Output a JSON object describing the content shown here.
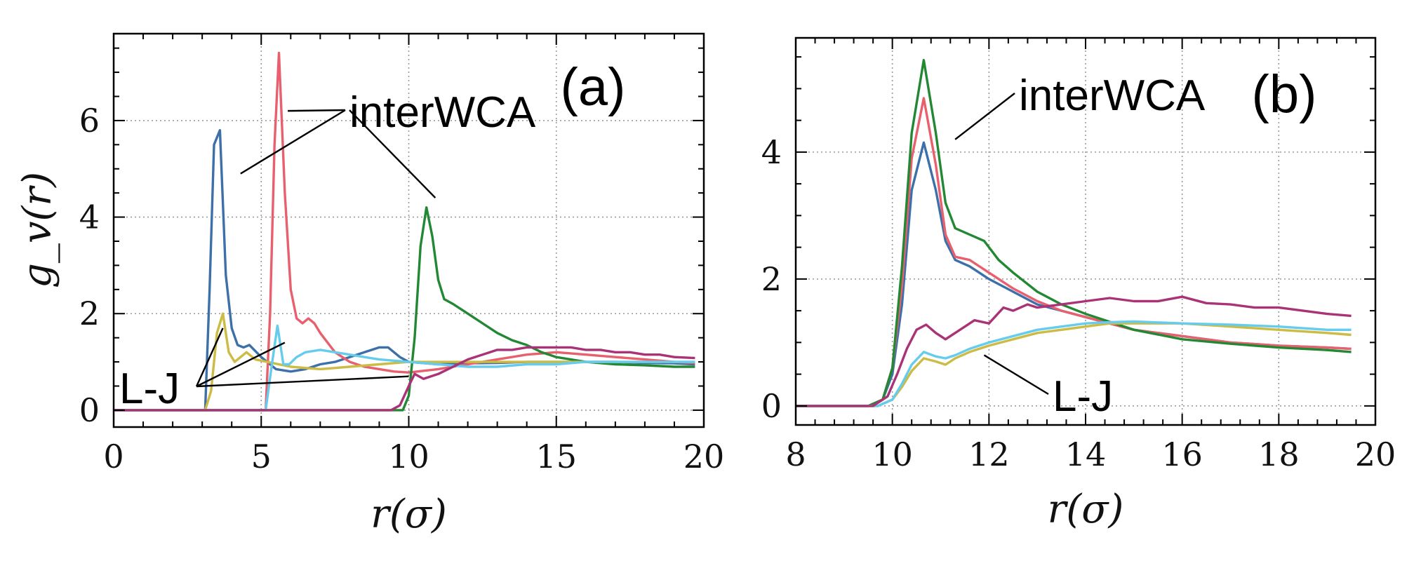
{
  "chart_data": [
    {
      "panel": "(a)",
      "type": "line",
      "title": "",
      "xlabel": "r(σ)",
      "ylabel": "g_v(r)",
      "xlim": [
        0,
        20
      ],
      "ylim": [
        -0.35,
        7.8
      ],
      "xticks": [
        0,
        5,
        10,
        15,
        20
      ],
      "xticklabels": [
        "0",
        "5",
        "10",
        "15",
        "20"
      ],
      "yticks": [
        0,
        2,
        4,
        6
      ],
      "yticklabels": [
        "0",
        "2",
        "4",
        "6"
      ],
      "grid": true,
      "annotations": [
        {
          "text": "interWCA",
          "anchor": [
            8.1,
            6.3
          ],
          "targets": [
            [
              5.9,
              6.2
            ],
            [
              4.3,
              4.9
            ],
            [
              10.9,
              4.4
            ]
          ]
        },
        {
          "text": "L-J",
          "anchor": [
            0.3,
            0.5
          ],
          "targets": [
            [
              3.7,
              1.7
            ],
            [
              5.8,
              1.4
            ],
            [
              10.0,
              0.7
            ]
          ]
        }
      ],
      "series": [
        {
          "name": "blue",
          "color": "#3d70a8",
          "x": [
            0,
            3.1,
            3.25,
            3.4,
            3.6,
            3.8,
            4.0,
            4.2,
            4.4,
            4.6,
            5.0,
            5.5,
            6.0,
            6.5,
            7.0,
            7.5,
            8.0,
            8.5,
            9.0,
            9.3,
            9.7,
            10.0,
            11.0,
            12.0,
            13.0,
            14.0,
            15.0,
            16.0,
            17.0,
            18.0,
            19.0,
            19.7
          ],
          "y": [
            0,
            0,
            2.5,
            5.5,
            5.8,
            2.8,
            1.7,
            1.35,
            1.3,
            1.35,
            1.1,
            0.85,
            0.8,
            0.85,
            0.95,
            1.0,
            1.1,
            1.2,
            1.3,
            1.3,
            1.1,
            1.0,
            0.95,
            0.97,
            0.98,
            1.0,
            1.0,
            1.0,
            1.0,
            0.98,
            0.97,
            0.95
          ]
        },
        {
          "name": "red",
          "color": "#e8606e",
          "x": [
            0,
            5.15,
            5.3,
            5.45,
            5.6,
            5.8,
            6.0,
            6.2,
            6.4,
            6.6,
            6.8,
            7.0,
            7.5,
            8.0,
            8.5,
            9.0,
            9.5,
            10.0,
            11.0,
            12.0,
            13.0,
            14.0,
            15.0,
            16.0,
            17.0,
            18.0,
            19.0,
            19.7
          ],
          "y": [
            0,
            0,
            2.0,
            5.5,
            7.4,
            4.5,
            2.5,
            1.9,
            1.8,
            1.9,
            1.8,
            1.6,
            1.2,
            1.0,
            0.9,
            0.85,
            0.8,
            0.78,
            0.85,
            0.95,
            1.05,
            1.15,
            1.2,
            1.15,
            1.1,
            1.05,
            1.0,
            0.98
          ]
        },
        {
          "name": "green",
          "color": "#228833",
          "x": [
            0,
            9.8,
            10.0,
            10.2,
            10.4,
            10.6,
            10.8,
            11.0,
            11.2,
            11.5,
            12.0,
            12.5,
            13.0,
            13.5,
            14.0,
            14.5,
            15.0,
            16.0,
            17.0,
            18.0,
            19.0,
            19.7
          ],
          "y": [
            0,
            0,
            0.3,
            1.5,
            3.4,
            4.2,
            3.6,
            2.7,
            2.3,
            2.2,
            2.0,
            1.8,
            1.6,
            1.45,
            1.35,
            1.2,
            1.1,
            1.0,
            0.95,
            0.93,
            0.9,
            0.9
          ]
        },
        {
          "name": "yellow",
          "color": "#ccbb44",
          "x": [
            0,
            3.1,
            3.3,
            3.5,
            3.7,
            3.9,
            4.1,
            4.3,
            4.5,
            4.8,
            5.2,
            6.0,
            7.0,
            8.0,
            9.0,
            10.0,
            11.0,
            12.0,
            13.0,
            14.0,
            15.0,
            16.0,
            17.0,
            18.0,
            19.0,
            19.7
          ],
          "y": [
            0,
            0,
            0.4,
            1.6,
            2.0,
            1.2,
            1.0,
            1.1,
            1.2,
            1.05,
            1.0,
            0.9,
            0.85,
            0.9,
            0.95,
            1.0,
            1.0,
            1.0,
            1.0,
            1.0,
            1.0,
            1.0,
            1.0,
            1.0,
            1.0,
            1.0
          ]
        },
        {
          "name": "cyan",
          "color": "#66ccee",
          "x": [
            0,
            5.15,
            5.35,
            5.55,
            5.75,
            5.95,
            6.2,
            6.5,
            7.0,
            7.5,
            8.0,
            8.5,
            9.0,
            10.0,
            11.0,
            12.0,
            13.0,
            14.0,
            15.0,
            16.0,
            17.0,
            18.0,
            19.0,
            19.7
          ],
          "y": [
            0,
            0,
            0.9,
            1.75,
            0.95,
            0.95,
            1.1,
            1.2,
            1.25,
            1.2,
            1.15,
            1.1,
            1.05,
            1.0,
            0.95,
            0.9,
            0.9,
            0.95,
            0.95,
            1.0,
            1.0,
            1.0,
            1.0,
            1.0
          ]
        },
        {
          "name": "purple",
          "color": "#aa3377",
          "x": [
            0,
            9.4,
            9.7,
            10.0,
            10.2,
            10.5,
            11.0,
            11.5,
            12.0,
            12.5,
            13.0,
            13.5,
            14.0,
            14.5,
            15.0,
            15.5,
            16.0,
            16.5,
            17.0,
            17.5,
            18.0,
            18.5,
            19.0,
            19.7
          ],
          "y": [
            0,
            0,
            0.1,
            0.5,
            0.75,
            0.65,
            0.75,
            0.9,
            1.05,
            1.15,
            1.25,
            1.25,
            1.3,
            1.3,
            1.3,
            1.3,
            1.25,
            1.25,
            1.2,
            1.2,
            1.15,
            1.15,
            1.1,
            1.08
          ]
        }
      ]
    },
    {
      "panel": "(b)",
      "type": "line",
      "title": "",
      "xlabel": "r(σ)",
      "ylabel": "",
      "xlim": [
        8,
        20
      ],
      "ylim": [
        -0.3,
        5.8
      ],
      "xticks": [
        8,
        10,
        12,
        14,
        16,
        18,
        20
      ],
      "xticklabels": [
        "8",
        "10",
        "12",
        "14",
        "16",
        "18",
        "20"
      ],
      "yticks": [
        0,
        2,
        4
      ],
      "yticklabels": [
        "0",
        "2",
        "4"
      ],
      "grid": true,
      "annotations": [
        {
          "text": "interWCA",
          "anchor": [
            12.4,
            4.8
          ],
          "targets": [
            [
              11.3,
              4.2
            ]
          ]
        },
        {
          "text": "L-J",
          "anchor": [
            13.2,
            0.2
          ],
          "targets": [
            [
              11.9,
              0.8
            ]
          ]
        }
      ],
      "series": [
        {
          "name": "blue",
          "color": "#3d70a8",
          "x": [
            8,
            9.5,
            9.8,
            10.0,
            10.2,
            10.4,
            10.65,
            10.9,
            11.1,
            11.3,
            11.6,
            12.0,
            12.5,
            13.0,
            13.5,
            14.0,
            15.0,
            16.0,
            17.0,
            18.0,
            19.0,
            19.5
          ],
          "y": [
            0,
            0,
            0.1,
            0.5,
            1.6,
            3.4,
            4.15,
            3.4,
            2.6,
            2.3,
            2.2,
            2.0,
            1.8,
            1.6,
            1.5,
            1.4,
            1.2,
            1.1,
            1.0,
            0.95,
            0.92,
            0.9
          ]
        },
        {
          "name": "red",
          "color": "#e8606e",
          "x": [
            8,
            9.5,
            9.8,
            10.0,
            10.2,
            10.4,
            10.65,
            10.9,
            11.1,
            11.3,
            11.6,
            12.0,
            12.5,
            13.0,
            13.5,
            14.0,
            15.0,
            16.0,
            17.0,
            18.0,
            19.0,
            19.5
          ],
          "y": [
            0,
            0,
            0.1,
            0.6,
            1.9,
            3.9,
            4.85,
            3.8,
            2.7,
            2.35,
            2.3,
            2.1,
            1.85,
            1.65,
            1.5,
            1.4,
            1.2,
            1.1,
            1.0,
            0.95,
            0.92,
            0.9
          ]
        },
        {
          "name": "green",
          "color": "#228833",
          "x": [
            8,
            9.5,
            9.8,
            10.0,
            10.2,
            10.4,
            10.65,
            10.9,
            11.1,
            11.3,
            11.6,
            11.9,
            12.2,
            12.5,
            13.0,
            13.5,
            14.0,
            15.0,
            16.0,
            17.0,
            18.0,
            19.0,
            19.5
          ],
          "y": [
            0,
            0,
            0.1,
            0.6,
            2.2,
            4.3,
            5.45,
            4.3,
            3.2,
            2.8,
            2.7,
            2.6,
            2.3,
            2.1,
            1.8,
            1.6,
            1.45,
            1.2,
            1.05,
            0.98,
            0.92,
            0.88,
            0.85
          ]
        },
        {
          "name": "yellow",
          "color": "#ccbb44",
          "x": [
            8,
            9.7,
            10.0,
            10.2,
            10.4,
            10.65,
            10.9,
            11.1,
            11.3,
            11.6,
            12.0,
            12.5,
            13.0,
            13.5,
            14.0,
            14.5,
            15.0,
            16.0,
            17.0,
            18.0,
            19.0,
            19.5
          ],
          "y": [
            0,
            0,
            0.1,
            0.3,
            0.55,
            0.75,
            0.7,
            0.65,
            0.75,
            0.85,
            0.95,
            1.05,
            1.15,
            1.2,
            1.25,
            1.3,
            1.3,
            1.3,
            1.25,
            1.2,
            1.15,
            1.12
          ]
        },
        {
          "name": "cyan",
          "color": "#66ccee",
          "x": [
            8,
            9.7,
            10.0,
            10.2,
            10.4,
            10.65,
            10.9,
            11.1,
            11.3,
            11.6,
            12.0,
            12.5,
            13.0,
            13.5,
            14.0,
            14.5,
            15.0,
            16.0,
            17.0,
            18.0,
            19.0,
            19.5
          ],
          "y": [
            0,
            0,
            0.1,
            0.35,
            0.65,
            0.85,
            0.78,
            0.75,
            0.8,
            0.9,
            1.0,
            1.1,
            1.2,
            1.25,
            1.3,
            1.32,
            1.33,
            1.3,
            1.28,
            1.25,
            1.2,
            1.2
          ]
        },
        {
          "name": "purple",
          "color": "#aa3377",
          "x": [
            8,
            9.6,
            9.9,
            10.1,
            10.3,
            10.5,
            10.7,
            10.9,
            11.1,
            11.4,
            11.7,
            12.0,
            12.3,
            12.5,
            12.8,
            13.0,
            13.5,
            14.0,
            14.5,
            15.0,
            15.5,
            16.0,
            16.5,
            17.0,
            17.5,
            18.0,
            18.5,
            19.0,
            19.5
          ],
          "y": [
            0,
            0,
            0.15,
            0.5,
            0.9,
            1.2,
            1.28,
            1.15,
            1.05,
            1.2,
            1.35,
            1.3,
            1.55,
            1.5,
            1.6,
            1.55,
            1.6,
            1.65,
            1.7,
            1.65,
            1.65,
            1.72,
            1.62,
            1.6,
            1.55,
            1.55,
            1.5,
            1.45,
            1.42
          ]
        }
      ]
    }
  ]
}
